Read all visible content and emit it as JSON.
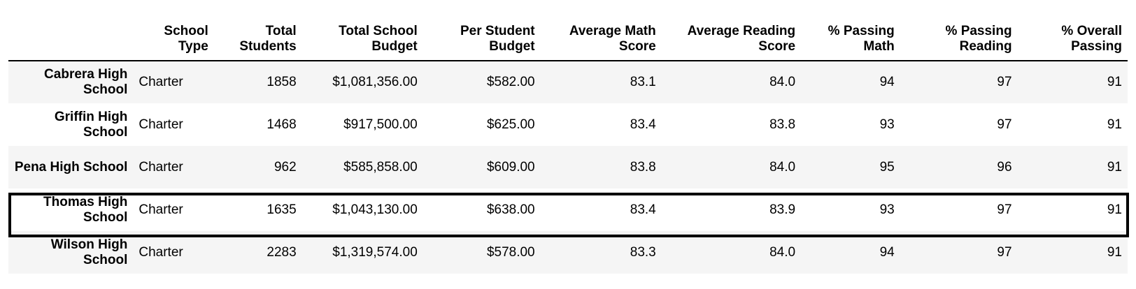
{
  "table": {
    "columns": [
      "",
      "School\nType",
      "Total\nStudents",
      "Total School\nBudget",
      "Per Student\nBudget",
      "Average Math\nScore",
      "Average Reading\nScore",
      "% Passing\nMath",
      "% Passing\nReading",
      "% Overall\nPassing"
    ],
    "rows": [
      {
        "school": "Cabrera High School",
        "type": "Charter",
        "students": "1858",
        "total_budget": "$1,081,356.00",
        "per_student": "$582.00",
        "avg_math": "83.1",
        "avg_reading": "84.0",
        "pass_math": "94",
        "pass_reading": "97",
        "overall": "91"
      },
      {
        "school": "Griffin High School",
        "type": "Charter",
        "students": "1468",
        "total_budget": "$917,500.00",
        "per_student": "$625.00",
        "avg_math": "83.4",
        "avg_reading": "83.8",
        "pass_math": "93",
        "pass_reading": "97",
        "overall": "91"
      },
      {
        "school": "Pena High School",
        "type": "Charter",
        "students": "962",
        "total_budget": "$585,858.00",
        "per_student": "$609.00",
        "avg_math": "83.8",
        "avg_reading": "84.0",
        "pass_math": "95",
        "pass_reading": "96",
        "overall": "91"
      },
      {
        "school": "Thomas High School",
        "type": "Charter",
        "students": "1635",
        "total_budget": "$1,043,130.00",
        "per_student": "$638.00",
        "avg_math": "83.4",
        "avg_reading": "83.9",
        "pass_math": "93",
        "pass_reading": "97",
        "overall": "91"
      },
      {
        "school": "Wilson High School",
        "type": "Charter",
        "students": "2283",
        "total_budget": "$1,319,574.00",
        "per_student": "$578.00",
        "avg_math": "83.3",
        "avg_reading": "84.0",
        "pass_math": "94",
        "pass_reading": "97",
        "overall": "91"
      }
    ],
    "highlighted_row": "Thomas High School"
  }
}
